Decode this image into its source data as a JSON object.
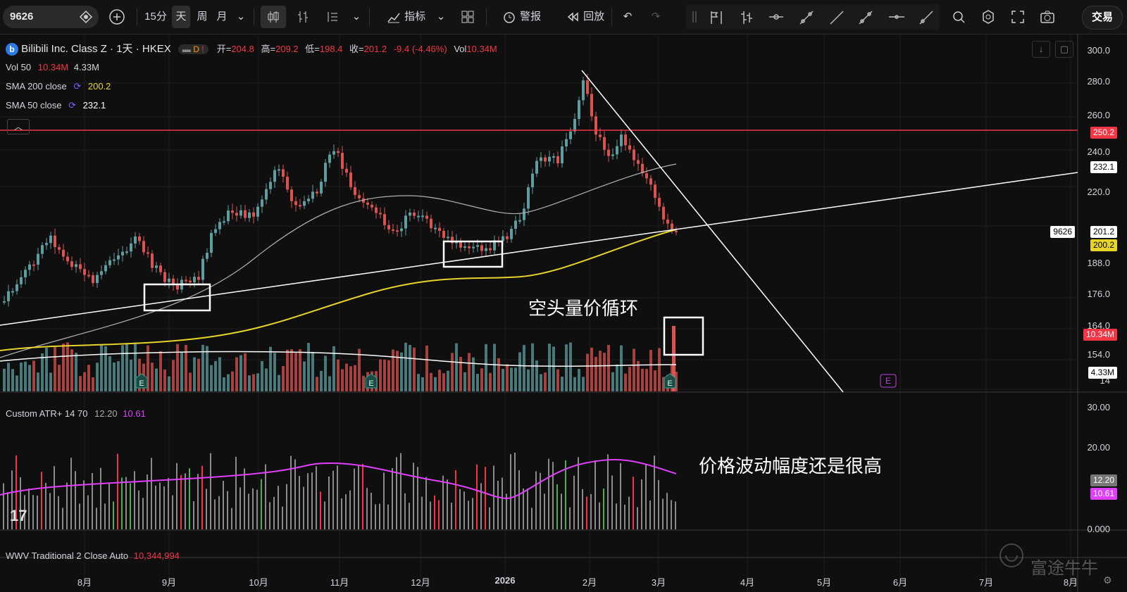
{
  "toolbar": {
    "symbol": "9626",
    "intervals": [
      "15分",
      "天",
      "周",
      "月"
    ],
    "active_interval": "天",
    "indicators_label": "指标",
    "alert_label": "警报",
    "replay_label": "回放",
    "trade_label": "交易"
  },
  "header": {
    "title": "Bilibili Inc. Class Z · 1天 · HKEX",
    "badge": "D",
    "open_label": "开=",
    "open": "204.8",
    "high_label": "高=",
    "high": "209.2",
    "low_label": "低=",
    "low": "198.4",
    "close_label": "收=",
    "close": "201.2",
    "change": "-9.4 (-4.46%)",
    "vol_label": "Vol",
    "vol": "10.34M"
  },
  "indicators": {
    "vol50": {
      "name": "Vol 50",
      "v1": "10.34M",
      "v2": "4.33M"
    },
    "sma200": {
      "name": "SMA 200 close",
      "value": "200.2"
    },
    "sma50": {
      "name": "SMA 50 close",
      "value": "232.1"
    },
    "atr": {
      "name": "Custom ATR+ 14 70",
      "v1": "12.20",
      "v2": "10.61"
    },
    "wwv": {
      "name": "WWV Traditional 2 Close Auto",
      "value": "10,344,994"
    }
  },
  "price_axis": [
    "300.0",
    "280.0",
    "260.0",
    "240.0",
    "220.0",
    "188.0",
    "176.0",
    "164.0",
    "154.0",
    "14"
  ],
  "price_tags": {
    "resistance": "250.2",
    "sma50": "232.1",
    "symbol_tag": "9626",
    "last": "201.2",
    "sma200": "200.2",
    "volume": "10.34M",
    "vol_ma": "4.33M"
  },
  "atr_axis": [
    "30.00",
    "20.00",
    "0.000"
  ],
  "atr_tags": {
    "v1": "12.20",
    "v2": "10.61"
  },
  "time_axis": [
    "8月",
    "9月",
    "10月",
    "11月",
    "12月",
    "2026",
    "2月",
    "3月",
    "4月",
    "5月",
    "6月",
    "7月",
    "8月"
  ],
  "annotations": {
    "bear_cycle": "空头量价循环",
    "volatility": "价格波动幅度还是很高"
  },
  "watermark": "富途牛牛",
  "colors": {
    "up": "#5f9ea0",
    "down": "#d9534f",
    "sma200": "#e6d42a",
    "sma50": "#b0b0b0",
    "resistance": "#f23645",
    "atr_ma": "#e040fb"
  }
}
